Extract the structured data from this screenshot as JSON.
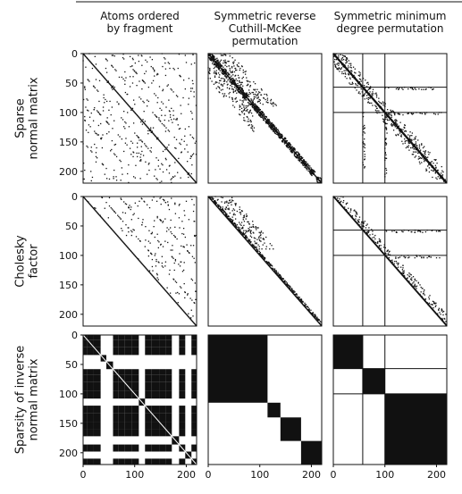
{
  "chart_data": {
    "type": "heatmap",
    "matrix_size": 220,
    "columns": [
      {
        "id": "fragment",
        "title_lines": [
          "Atoms ordered",
          "by fragment"
        ]
      },
      {
        "id": "rcm",
        "title_lines": [
          "Symmetric reverse",
          "Cuthill-McKee",
          "permutation"
        ]
      },
      {
        "id": "amd",
        "title_lines": [
          "Symmetric minimum",
          "degree permutation"
        ]
      }
    ],
    "rows": [
      {
        "id": "sparse",
        "title_lines": [
          "Sparse",
          "normal matrix"
        ]
      },
      {
        "id": "cholesky",
        "title_lines": [
          "Cholesky",
          "factor"
        ]
      },
      {
        "id": "inverse",
        "title_lines": [
          "Sparsity of inverse",
          "normal matrix"
        ]
      }
    ],
    "x_ticks": [
      0,
      100,
      200
    ],
    "y_ticks": [
      0,
      50,
      100,
      150,
      200
    ],
    "xlim": [
      0,
      220
    ],
    "ylim": [
      0,
      220
    ],
    "grid": false,
    "legend": "none",
    "amd_partition_lines": [
      57,
      100
    ],
    "inverse_blocks": {
      "rcm": [
        [
          0,
          115
        ],
        [
          115,
          140
        ],
        [
          140,
          180
        ],
        [
          180,
          220
        ]
      ],
      "amd": [
        [
          0,
          57
        ],
        [
          57,
          100
        ],
        [
          100,
          220
        ]
      ]
    },
    "colors": {
      "marks": "#111111",
      "background": "#ffffff",
      "frame": "#111111"
    }
  }
}
